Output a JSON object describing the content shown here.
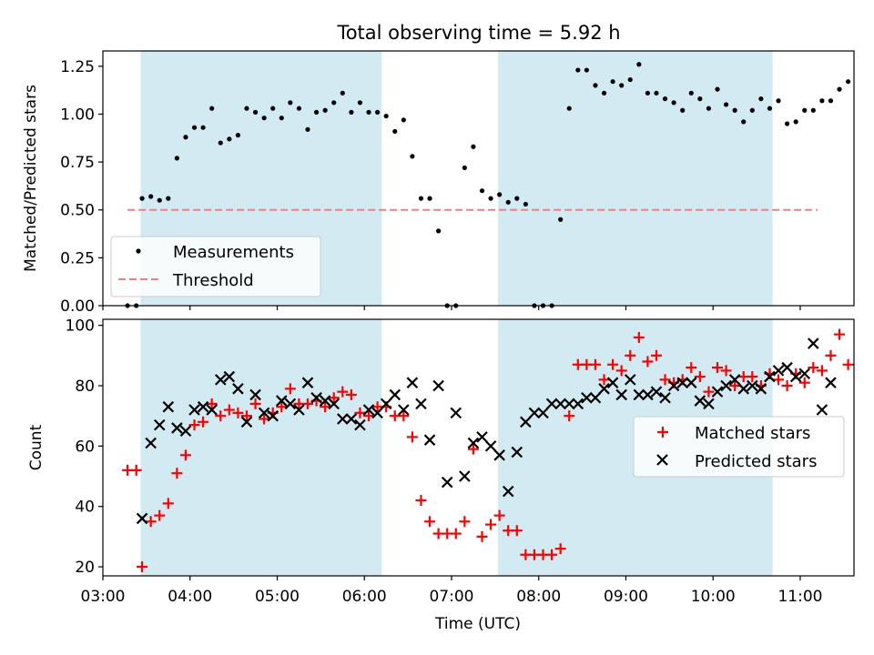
{
  "chart_data": [
    {
      "type": "scatter",
      "title": "Total observing time = 5.92 h",
      "xlabel": "",
      "ylabel": "Matched/Predicted stars",
      "xlim": [
        "03:00",
        "11:37"
      ],
      "ylim": [
        0,
        1.33
      ],
      "yticks": [
        "0.00",
        "0.25",
        "0.50",
        "0.75",
        "1.00",
        "1.25"
      ],
      "grid": false,
      "legend_position": "lower-left",
      "shaded_intervals": [
        [
          "03:26",
          "06:12"
        ],
        [
          "07:32",
          "10:41"
        ]
      ],
      "threshold": {
        "name": "Threshold",
        "value": 0.5,
        "x_range": [
          "03:17",
          "11:12"
        ],
        "color": "#f08080"
      },
      "series": [
        {
          "name": "Measurements",
          "marker": "dot",
          "color": "#000000",
          "points": [
            [
              "03:17",
              0.0
            ],
            [
              "03:23",
              0.0
            ],
            [
              "03:27",
              0.56
            ],
            [
              "03:33",
              0.57
            ],
            [
              "03:39",
              0.55
            ],
            [
              "03:45",
              0.56
            ],
            [
              "03:51",
              0.77
            ],
            [
              "03:57",
              0.88
            ],
            [
              "04:03",
              0.93
            ],
            [
              "04:09",
              0.93
            ],
            [
              "04:15",
              1.03
            ],
            [
              "04:21",
              0.85
            ],
            [
              "04:27",
              0.87
            ],
            [
              "04:33",
              0.89
            ],
            [
              "04:39",
              1.03
            ],
            [
              "04:45",
              1.01
            ],
            [
              "04:51",
              0.98
            ],
            [
              "04:57",
              1.03
            ],
            [
              "05:03",
              0.98
            ],
            [
              "05:09",
              1.06
            ],
            [
              "05:15",
              1.03
            ],
            [
              "05:21",
              0.92
            ],
            [
              "05:27",
              1.01
            ],
            [
              "05:33",
              1.02
            ],
            [
              "05:39",
              1.06
            ],
            [
              "05:45",
              1.11
            ],
            [
              "05:51",
              1.01
            ],
            [
              "05:57",
              1.06
            ],
            [
              "06:03",
              1.01
            ],
            [
              "06:09",
              1.01
            ],
            [
              "06:15",
              0.99
            ],
            [
              "06:21",
              0.91
            ],
            [
              "06:27",
              0.97
            ],
            [
              "06:33",
              0.78
            ],
            [
              "06:39",
              0.56
            ],
            [
              "06:45",
              0.56
            ],
            [
              "06:51",
              0.39
            ],
            [
              "06:57",
              0.0
            ],
            [
              "07:03",
              0.0
            ],
            [
              "07:09",
              0.72
            ],
            [
              "07:15",
              0.83
            ],
            [
              "07:21",
              0.6
            ],
            [
              "07:27",
              0.56
            ],
            [
              "07:33",
              0.58
            ],
            [
              "07:39",
              0.54
            ],
            [
              "07:45",
              0.56
            ],
            [
              "07:51",
              0.53
            ],
            [
              "07:57",
              0.0
            ],
            [
              "08:03",
              0.0
            ],
            [
              "08:09",
              0.0
            ],
            [
              "08:15",
              0.45
            ],
            [
              "08:21",
              1.03
            ],
            [
              "08:27",
              1.23
            ],
            [
              "08:33",
              1.23
            ],
            [
              "08:39",
              1.15
            ],
            [
              "08:45",
              1.11
            ],
            [
              "08:51",
              1.17
            ],
            [
              "08:57",
              1.15
            ],
            [
              "09:03",
              1.18
            ],
            [
              "09:09",
              1.26
            ],
            [
              "09:15",
              1.11
            ],
            [
              "09:21",
              1.11
            ],
            [
              "09:27",
              1.08
            ],
            [
              "09:33",
              1.06
            ],
            [
              "09:39",
              1.02
            ],
            [
              "09:45",
              1.11
            ],
            [
              "09:51",
              1.08
            ],
            [
              "09:57",
              1.03
            ],
            [
              "10:03",
              1.13
            ],
            [
              "10:09",
              1.05
            ],
            [
              "10:15",
              1.02
            ],
            [
              "10:21",
              0.96
            ],
            [
              "10:27",
              1.02
            ],
            [
              "10:33",
              1.08
            ],
            [
              "10:39",
              1.03
            ],
            [
              "10:45",
              1.07
            ],
            [
              "10:51",
              0.95
            ],
            [
              "10:57",
              0.96
            ],
            [
              "11:03",
              1.02
            ],
            [
              "11:09",
              1.02
            ],
            [
              "11:15",
              1.07
            ],
            [
              "11:21",
              1.07
            ],
            [
              "11:27",
              1.13
            ],
            [
              "11:33",
              1.17
            ]
          ]
        }
      ]
    },
    {
      "type": "scatter",
      "title": "",
      "xlabel": "Time (UTC)",
      "ylabel": "Count",
      "xlim": [
        "03:00",
        "11:37"
      ],
      "ylim": [
        17,
        102
      ],
      "xticks": [
        "03:00",
        "04:00",
        "05:00",
        "06:00",
        "07:00",
        "08:00",
        "09:00",
        "10:00",
        "11:00"
      ],
      "yticks": [
        "20",
        "40",
        "60",
        "80",
        "100"
      ],
      "grid": false,
      "legend_position": "right",
      "shaded_intervals": [
        [
          "03:26",
          "06:12"
        ],
        [
          "07:32",
          "10:41"
        ]
      ],
      "series": [
        {
          "name": "Matched stars",
          "marker": "plus",
          "color": "#ff0000",
          "points": [
            [
              "03:17",
              52
            ],
            [
              "03:23",
              52
            ],
            [
              "03:27",
              20
            ],
            [
              "03:33",
              35
            ],
            [
              "03:39",
              37
            ],
            [
              "03:45",
              41
            ],
            [
              "03:51",
              51
            ],
            [
              "03:57",
              57
            ],
            [
              "04:03",
              67
            ],
            [
              "04:09",
              68
            ],
            [
              "04:15",
              74
            ],
            [
              "04:21",
              70
            ],
            [
              "04:27",
              72
            ],
            [
              "04:33",
              71
            ],
            [
              "04:39",
              70
            ],
            [
              "04:45",
              74
            ],
            [
              "04:51",
              69
            ],
            [
              "04:57",
              71
            ],
            [
              "05:03",
              73
            ],
            [
              "05:09",
              79
            ],
            [
              "05:15",
              74
            ],
            [
              "05:21",
              74
            ],
            [
              "05:27",
              75
            ],
            [
              "05:33",
              73
            ],
            [
              "05:39",
              76
            ],
            [
              "05:45",
              78
            ],
            [
              "05:51",
              77
            ],
            [
              "05:57",
              71
            ],
            [
              "06:03",
              70
            ],
            [
              "06:09",
              73
            ],
            [
              "06:15",
              73
            ],
            [
              "06:21",
              70
            ],
            [
              "06:27",
              70
            ],
            [
              "06:33",
              63
            ],
            [
              "06:39",
              42
            ],
            [
              "06:45",
              35
            ],
            [
              "06:51",
              31
            ],
            [
              "06:57",
              31
            ],
            [
              "07:03",
              31
            ],
            [
              "07:09",
              35
            ],
            [
              "07:15",
              59
            ],
            [
              "07:21",
              30
            ],
            [
              "07:27",
              34
            ],
            [
              "07:33",
              37
            ],
            [
              "07:39",
              32
            ],
            [
              "07:45",
              32
            ],
            [
              "07:51",
              24
            ],
            [
              "07:57",
              24
            ],
            [
              "08:03",
              24
            ],
            [
              "08:09",
              24
            ],
            [
              "08:15",
              26
            ],
            [
              "08:21",
              70
            ],
            [
              "08:27",
              87
            ],
            [
              "08:33",
              87
            ],
            [
              "08:39",
              87
            ],
            [
              "08:45",
              82
            ],
            [
              "08:51",
              87
            ],
            [
              "08:57",
              85
            ],
            [
              "09:03",
              90
            ],
            [
              "09:09",
              96
            ],
            [
              "09:15",
              88
            ],
            [
              "09:21",
              90
            ],
            [
              "09:27",
              82
            ],
            [
              "09:33",
              81
            ],
            [
              "09:39",
              82
            ],
            [
              "09:45",
              86
            ],
            [
              "09:51",
              83
            ],
            [
              "09:57",
              78
            ],
            [
              "10:03",
              86
            ],
            [
              "10:09",
              85
            ],
            [
              "10:15",
              80
            ],
            [
              "10:21",
              83
            ],
            [
              "10:27",
              83
            ],
            [
              "10:33",
              80
            ],
            [
              "10:39",
              84
            ],
            [
              "10:45",
              82
            ],
            [
              "10:51",
              80
            ],
            [
              "10:57",
              84
            ],
            [
              "11:03",
              81
            ],
            [
              "11:09",
              86
            ],
            [
              "11:15",
              85
            ],
            [
              "11:21",
              90
            ],
            [
              "11:27",
              97
            ],
            [
              "11:33",
              87
            ]
          ]
        },
        {
          "name": "Predicted stars",
          "marker": "cross",
          "color": "#000000",
          "points": [
            [
              "03:27",
              36
            ],
            [
              "03:33",
              61
            ],
            [
              "03:39",
              67
            ],
            [
              "03:45",
              73
            ],
            [
              "03:51",
              66
            ],
            [
              "03:57",
              65
            ],
            [
              "04:03",
              72
            ],
            [
              "04:09",
              73
            ],
            [
              "04:15",
              72
            ],
            [
              "04:21",
              82
            ],
            [
              "04:27",
              83
            ],
            [
              "04:33",
              79
            ],
            [
              "04:39",
              68
            ],
            [
              "04:45",
              77
            ],
            [
              "04:51",
              71
            ],
            [
              "04:57",
              70
            ],
            [
              "05:03",
              75
            ],
            [
              "05:09",
              74
            ],
            [
              "05:15",
              72
            ],
            [
              "05:21",
              81
            ],
            [
              "05:27",
              76
            ],
            [
              "05:33",
              75
            ],
            [
              "05:39",
              74
            ],
            [
              "05:45",
              69
            ],
            [
              "05:51",
              69
            ],
            [
              "05:57",
              67
            ],
            [
              "06:03",
              72
            ],
            [
              "06:09",
              71
            ],
            [
              "06:15",
              74
            ],
            [
              "06:21",
              77
            ],
            [
              "06:27",
              72
            ],
            [
              "06:33",
              81
            ],
            [
              "06:39",
              74
            ],
            [
              "06:45",
              62
            ],
            [
              "06:51",
              80
            ],
            [
              "06:57",
              48
            ],
            [
              "07:03",
              71
            ],
            [
              "07:09",
              50
            ],
            [
              "07:15",
              61
            ],
            [
              "07:21",
              63
            ],
            [
              "07:27",
              60
            ],
            [
              "07:33",
              57
            ],
            [
              "07:39",
              45
            ],
            [
              "07:45",
              58
            ],
            [
              "07:51",
              68
            ],
            [
              "07:57",
              71
            ],
            [
              "08:03",
              71
            ],
            [
              "08:09",
              74
            ],
            [
              "08:15",
              74
            ],
            [
              "08:21",
              74
            ],
            [
              "08:27",
              74
            ],
            [
              "08:33",
              76
            ],
            [
              "08:39",
              76
            ],
            [
              "08:45",
              79
            ],
            [
              "08:51",
              81
            ],
            [
              "08:57",
              77
            ],
            [
              "09:03",
              82
            ],
            [
              "09:09",
              77
            ],
            [
              "09:15",
              77
            ],
            [
              "09:21",
              78
            ],
            [
              "09:27",
              76
            ],
            [
              "09:33",
              80
            ],
            [
              "09:39",
              81
            ],
            [
              "09:45",
              81
            ],
            [
              "09:51",
              75
            ],
            [
              "09:57",
              74
            ],
            [
              "10:03",
              78
            ],
            [
              "10:09",
              80
            ],
            [
              "10:15",
              82
            ],
            [
              "10:21",
              79
            ],
            [
              "10:27",
              80
            ],
            [
              "10:33",
              79
            ],
            [
              "10:39",
              83
            ],
            [
              "10:45",
              85
            ],
            [
              "10:51",
              86
            ],
            [
              "10:57",
              83
            ],
            [
              "11:03",
              84
            ],
            [
              "11:09",
              94
            ],
            [
              "11:15",
              72
            ],
            [
              "11:21",
              81
            ]
          ]
        }
      ]
    }
  ]
}
